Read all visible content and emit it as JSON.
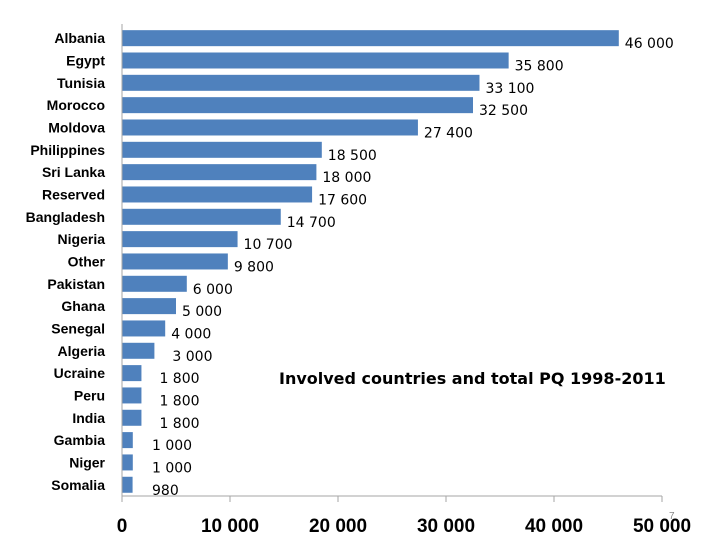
{
  "page_number": "7",
  "chart_data": {
    "type": "bar",
    "orientation": "horizontal",
    "title": "Involved countries and total PQ 1998-2011",
    "xlabel": "",
    "ylabel": "",
    "xlim": [
      0,
      50000
    ],
    "x_ticks": [
      0,
      10000,
      20000,
      30000,
      40000,
      50000
    ],
    "x_tick_labels": [
      "0",
      "10 000",
      "20 000",
      "30 000",
      "40 000",
      "50 000"
    ],
    "grid": false,
    "bar_color": "#4f81bd",
    "categories": [
      "Albania",
      "Egypt",
      "Tunisia",
      "Morocco",
      "Moldova",
      "Philippines",
      "Sri Lanka",
      "Reserved",
      "Bangladesh",
      "Nigeria",
      "Other",
      "Pakistan",
      "Ghana",
      "Senegal",
      "Algeria",
      "Ucraine",
      "Peru",
      "India",
      "Gambia",
      "Niger",
      "Somalia"
    ],
    "values": [
      46000,
      35800,
      33100,
      32500,
      27400,
      18500,
      18000,
      17600,
      14700,
      10700,
      9800,
      6000,
      5000,
      4000,
      3000,
      1800,
      1800,
      1800,
      1000,
      1000,
      980
    ],
    "value_labels": [
      "46 000",
      "35 800",
      "33 100",
      "32 500",
      "27 400",
      "18 500",
      "18 000",
      "17 600",
      "14 700",
      "10 700",
      "9 800",
      "6 000",
      "5 000",
      "4 000",
      "3 000",
      "1 800",
      "1 800",
      "1 800",
      "1 000",
      "1 000",
      "980"
    ]
  }
}
